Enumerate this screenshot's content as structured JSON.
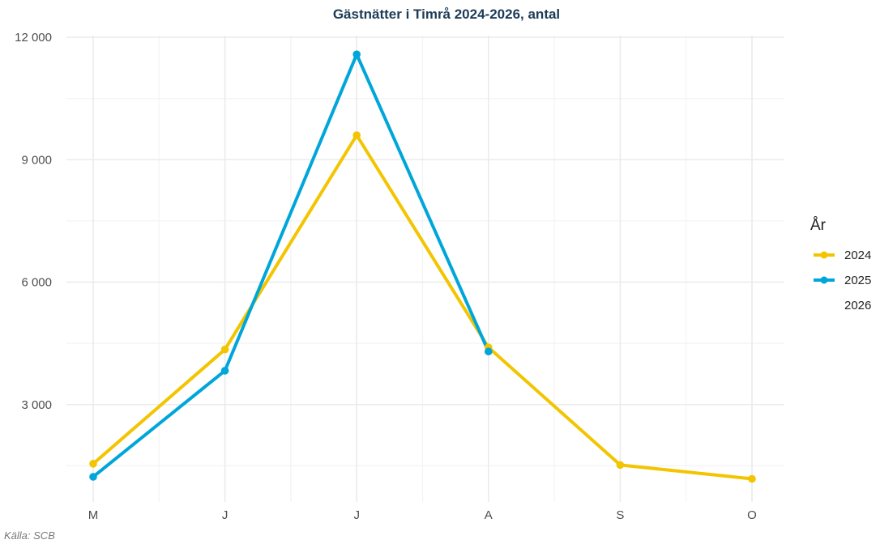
{
  "chart_data": {
    "type": "line",
    "title": "Gästnätter i Timrå 2024-2026, antal",
    "categories": [
      "M",
      "J",
      "J",
      "A",
      "S",
      "O"
    ],
    "ylim": [
      0,
      12000
    ],
    "yticks": [
      3000,
      6000,
      9000,
      12000
    ],
    "ytick_labels": [
      "3 000",
      "6 000",
      "9 000",
      "12 000"
    ],
    "grid": true,
    "legend_title": "År",
    "legend_position": "right",
    "series": [
      {
        "name": "2024",
        "color": "#f2c500",
        "values": [
          1550,
          4350,
          9600,
          4400,
          1520,
          1180
        ]
      },
      {
        "name": "2025",
        "color": "#00a6d9",
        "values": [
          1230,
          3830,
          11580,
          4300,
          null,
          null
        ]
      },
      {
        "name": "2026",
        "color": "#00a6d9",
        "values": [
          null,
          null,
          null,
          null,
          null,
          null
        ]
      }
    ],
    "caption": "Källa: SCB"
  }
}
